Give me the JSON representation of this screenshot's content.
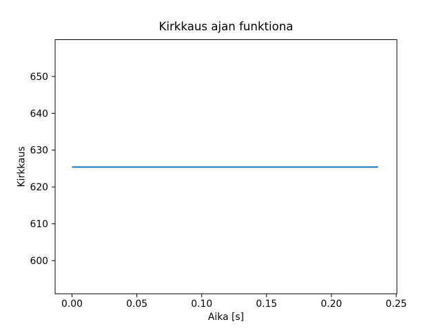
{
  "chart_data": {
    "type": "line",
    "title": "Kirkkaus ajan funktiona",
    "xlabel": "Aika [s]",
    "ylabel": "Kirkkaus",
    "xlim": [
      -0.013,
      0.2505
    ],
    "ylim": [
      591,
      660
    ],
    "xticks": [
      0.0,
      0.05,
      0.1,
      0.15,
      0.2,
      0.25
    ],
    "xtick_labels": [
      "0.00",
      "0.05",
      "0.10",
      "0.15",
      "0.20",
      "0.25"
    ],
    "yticks": [
      600,
      610,
      620,
      630,
      640,
      650
    ],
    "ytick_labels": [
      "600",
      "610",
      "620",
      "630",
      "640",
      "650"
    ],
    "grid": false,
    "legend": "none",
    "background_color": "#ffffff",
    "axis_color": "#000000",
    "series": [
      {
        "name": "kirkkaus-line",
        "color": "#1f77b4",
        "line_width": 2,
        "x": [
          0.0,
          0.236
        ],
        "y": [
          625.4,
          625.4
        ]
      }
    ]
  }
}
